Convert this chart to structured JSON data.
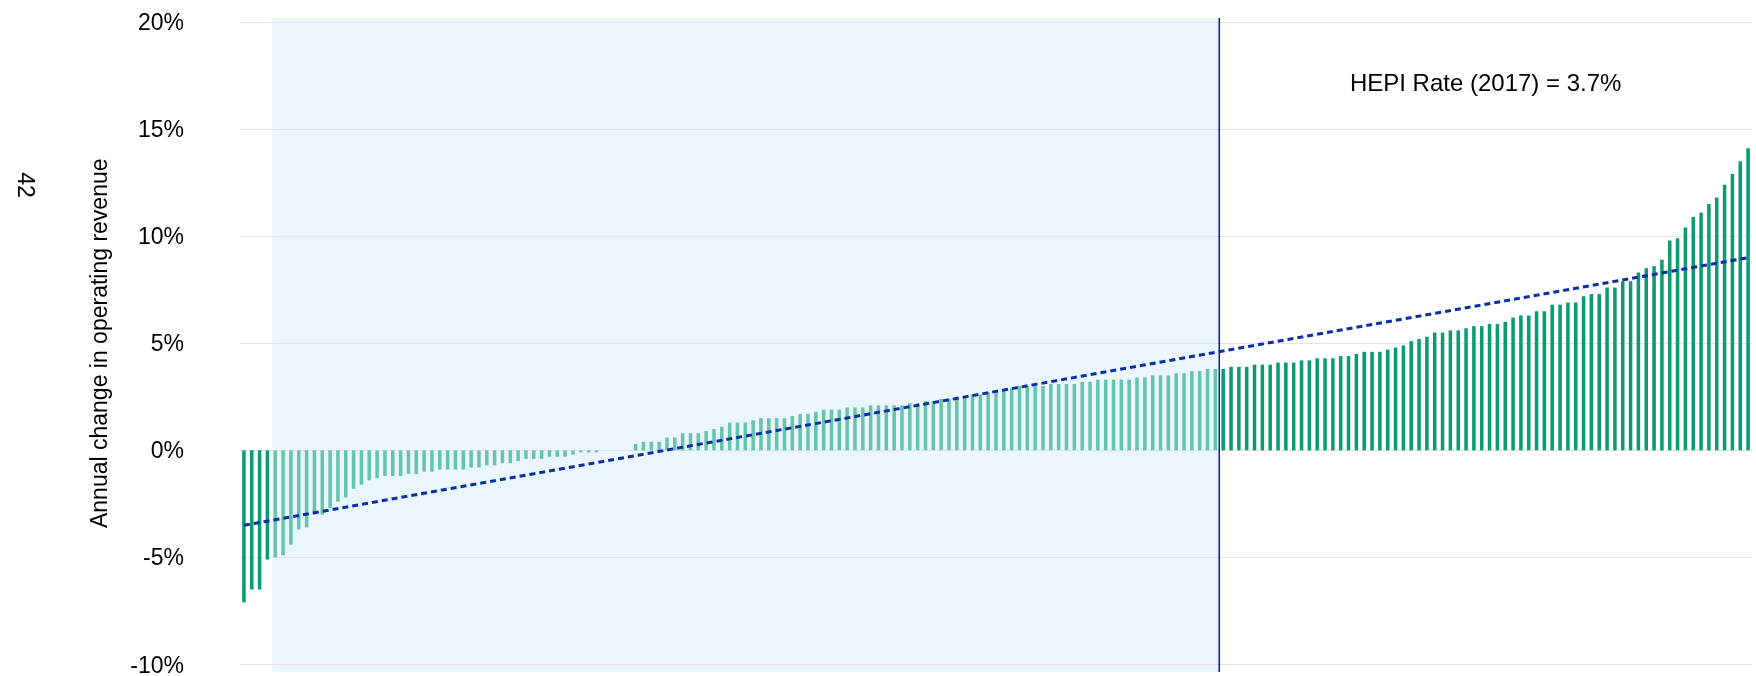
{
  "chart_data": {
    "type": "bar",
    "ylabel": "Annual change in operating revenue",
    "categories": [
      null,
      null,
      null,
      null,
      null,
      null,
      null,
      null,
      null,
      null,
      null,
      null,
      null,
      null,
      null,
      null,
      null,
      null,
      null,
      null,
      null,
      null,
      null,
      null,
      null,
      null,
      null,
      null,
      null,
      null,
      null,
      null,
      null,
      null,
      null,
      null,
      null,
      null,
      null,
      null,
      null,
      null,
      null,
      null,
      null,
      null,
      null,
      null,
      null,
      null,
      null,
      null,
      null,
      null,
      null,
      null,
      null,
      null,
      null,
      null,
      null,
      null,
      null,
      null,
      null,
      null,
      null,
      null,
      null,
      null,
      null,
      null,
      null,
      null,
      null,
      null,
      null,
      null,
      null,
      null,
      null,
      null,
      null,
      null,
      null,
      null,
      null,
      null,
      null,
      null,
      null,
      null,
      null,
      null,
      null,
      null,
      null,
      null,
      null,
      null,
      null,
      null,
      null,
      null,
      null,
      null,
      null,
      null,
      null,
      null,
      null,
      null,
      null,
      null,
      null,
      null,
      null,
      null,
      null,
      null,
      null,
      null,
      null,
      null,
      null,
      null,
      null,
      null,
      null,
      null,
      null,
      null,
      null,
      null,
      null,
      null,
      null,
      null,
      null,
      null,
      null,
      null,
      null,
      null,
      null,
      null,
      null,
      null,
      null,
      null,
      null,
      null,
      null,
      null,
      null,
      null,
      null,
      null,
      null,
      null,
      null,
      null,
      null,
      null,
      null,
      null,
      null,
      null,
      null,
      null,
      null,
      null,
      null,
      null,
      null,
      null,
      null,
      null,
      null,
      null,
      null,
      null,
      null,
      null,
      null,
      null,
      null,
      null,
      null,
      null,
      null,
      null,
      null
    ],
    "series": [
      {
        "colors": [
          "#0a9b72",
          "#0a9b72",
          "#0a9b72",
          "#0a9b72",
          "#66c4a8",
          "#66c4a8",
          "#66c4a8",
          "#66c4a8",
          "#66c4a8",
          "#66c4a8",
          "#66c4a8",
          "#66c4a8",
          "#66c4a8",
          "#66c4a8",
          "#66c4a8",
          "#66c4a8",
          "#66c4a8",
          "#66c4a8",
          "#66c4a8",
          "#66c4a8",
          "#66c4a8",
          "#66c4a8",
          "#66c4a8",
          "#66c4a8",
          "#66c4a8",
          "#66c4a8",
          "#66c4a8",
          "#66c4a8",
          "#66c4a8",
          "#66c4a8",
          "#66c4a8",
          "#66c4a8",
          "#66c4a8",
          "#66c4a8",
          "#66c4a8",
          "#66c4a8",
          "#66c4a8",
          "#66c4a8",
          "#66c4a8",
          "#66c4a8",
          "#66c4a8",
          "#66c4a8",
          "#66c4a8",
          "#66c4a8",
          "#66c4a8",
          "#66c4a8",
          "#66c4a8",
          "#66c4a8",
          "#66c4a8",
          "#66c4a8",
          "#66c4a8",
          "#66c4a8",
          "#66c4a8",
          "#66c4a8",
          "#66c4a8",
          "#66c4a8",
          "#66c4a8",
          "#66c4a8",
          "#66c4a8",
          "#66c4a8",
          "#66c4a8",
          "#66c4a8",
          "#66c4a8",
          "#66c4a8",
          "#66c4a8",
          "#66c4a8",
          "#66c4a8",
          "#66c4a8",
          "#66c4a8",
          "#66c4a8",
          "#66c4a8",
          "#66c4a8",
          "#66c4a8",
          "#66c4a8",
          "#66c4a8",
          "#66c4a8",
          "#66c4a8",
          "#66c4a8",
          "#66c4a8",
          "#66c4a8",
          "#66c4a8",
          "#66c4a8",
          "#66c4a8",
          "#66c4a8",
          "#66c4a8",
          "#66c4a8",
          "#66c4a8",
          "#66c4a8",
          "#66c4a8",
          "#66c4a8",
          "#66c4a8",
          "#66c4a8",
          "#66c4a8",
          "#66c4a8",
          "#66c4a8",
          "#66c4a8",
          "#66c4a8",
          "#66c4a8",
          "#66c4a8",
          "#66c4a8",
          "#66c4a8",
          "#66c4a8",
          "#66c4a8",
          "#66c4a8",
          "#66c4a8",
          "#66c4a8",
          "#66c4a8",
          "#66c4a8",
          "#66c4a8",
          "#66c4a8",
          "#66c4a8",
          "#66c4a8",
          "#66c4a8",
          "#66c4a8",
          "#66c4a8",
          "#66c4a8",
          "#66c4a8",
          "#66c4a8",
          "#66c4a8",
          "#66c4a8",
          "#66c4a8",
          "#66c4a8",
          "#66c4a8",
          "#66c4a8",
          "#66c4a8",
          "#0a9b72",
          "#0a9b72",
          "#0a9b72",
          "#0a9b72",
          "#0a9b72",
          "#0a9b72",
          "#0a9b72",
          "#0a9b72",
          "#0a9b72",
          "#0a9b72",
          "#0a9b72",
          "#0a9b72",
          "#0a9b72",
          "#0a9b72",
          "#0a9b72",
          "#0a9b72",
          "#0a9b72",
          "#0a9b72",
          "#0a9b72",
          "#0a9b72",
          "#0a9b72",
          "#0a9b72",
          "#0a9b72",
          "#0a9b72",
          "#0a9b72",
          "#0a9b72",
          "#0a9b72",
          "#0a9b72",
          "#0a9b72",
          "#0a9b72",
          "#0a9b72",
          "#0a9b72",
          "#0a9b72",
          "#0a9b72",
          "#0a9b72",
          "#0a9b72",
          "#0a9b72",
          "#0a9b72",
          "#0a9b72",
          "#0a9b72",
          "#0a9b72",
          "#0a9b72",
          "#0a9b72",
          "#0a9b72",
          "#0a9b72",
          "#0a9b72",
          "#0a9b72",
          "#0a9b72",
          "#0a9b72",
          "#0a9b72",
          "#0a9b72",
          "#0a9b72",
          "#0a9b72",
          "#0a9b72",
          "#0a9b72",
          "#0a9b72",
          "#0a9b72",
          "#0a9b72",
          "#0a9b72",
          "#0a9b72",
          "#0a9b72",
          "#0a9b72",
          "#0a9b72",
          "#0a9b72",
          "#0a9b72",
          "#0a9b72",
          "#0a9b72",
          "#0a9b72"
        ],
        "values": [
          -7.1,
          -6.5,
          -6.5,
          -5.1,
          -5.0,
          -4.9,
          -4.4,
          -3.7,
          -3.6,
          -3.0,
          -3.0,
          -2.7,
          -2.4,
          -2.2,
          -1.8,
          -1.6,
          -1.4,
          -1.3,
          -1.2,
          -1.2,
          -1.2,
          -1.1,
          -1.1,
          -1.0,
          -1.0,
          -0.9,
          -0.9,
          -0.9,
          -0.9,
          -0.8,
          -0.8,
          -0.7,
          -0.7,
          -0.6,
          -0.6,
          -0.5,
          -0.4,
          -0.4,
          -0.4,
          -0.3,
          -0.3,
          -0.3,
          -0.2,
          -0.1,
          -0.1,
          -0.1,
          0.0,
          0.0,
          0.0,
          0.0,
          0.3,
          0.4,
          0.4,
          0.4,
          0.6,
          0.6,
          0.8,
          0.8,
          0.8,
          0.9,
          1.0,
          1.1,
          1.3,
          1.3,
          1.3,
          1.4,
          1.5,
          1.5,
          1.5,
          1.5,
          1.6,
          1.7,
          1.7,
          1.8,
          1.9,
          1.9,
          1.9,
          2.0,
          2.0,
          2.0,
          2.1,
          2.1,
          2.1,
          2.1,
          2.1,
          2.2,
          2.2,
          2.3,
          2.3,
          2.4,
          2.4,
          2.5,
          2.5,
          2.6,
          2.6,
          2.7,
          2.7,
          2.8,
          2.9,
          3.0,
          3.0,
          3.0,
          3.0,
          3.1,
          3.1,
          3.1,
          3.1,
          3.2,
          3.2,
          3.3,
          3.3,
          3.3,
          3.3,
          3.3,
          3.4,
          3.4,
          3.5,
          3.5,
          3.5,
          3.6,
          3.6,
          3.7,
          3.7,
          3.8,
          3.8,
          3.8,
          3.9,
          3.9,
          3.9,
          4.0,
          4.0,
          4.0,
          4.1,
          4.1,
          4.1,
          4.2,
          4.2,
          4.3,
          4.3,
          4.3,
          4.4,
          4.4,
          4.5,
          4.6,
          4.6,
          4.6,
          4.7,
          4.8,
          4.9,
          5.1,
          5.2,
          5.3,
          5.5,
          5.5,
          5.6,
          5.6,
          5.7,
          5.8,
          5.8,
          5.9,
          5.9,
          6.0,
          6.2,
          6.3,
          6.3,
          6.5,
          6.5,
          6.8,
          6.8,
          6.9,
          6.9,
          7.2,
          7.3,
          7.3,
          7.6,
          7.6,
          7.9,
          7.9,
          8.3,
          8.5,
          8.6,
          8.9,
          9.8,
          9.9,
          10.4,
          10.9,
          11.1,
          11.5,
          11.8,
          12.4,
          12.9,
          13.5,
          14.1
        ]
      },
      {
        "type": "line",
        "color": "#0a2fa5",
        "line_style": "dashed",
        "values": [
          -3.5,
          null,
          null,
          null,
          null,
          null,
          null,
          null,
          null,
          null,
          null,
          null,
          null,
          null,
          null,
          null,
          null,
          null,
          null,
          null,
          null,
          null,
          null,
          null,
          null,
          null,
          null,
          null,
          null,
          null,
          null,
          null,
          null,
          null,
          null,
          null,
          null,
          null,
          null,
          null,
          null,
          null,
          null,
          null,
          null,
          null,
          null,
          null,
          null,
          null,
          null,
          null,
          null,
          null,
          null,
          null,
          null,
          null,
          null,
          null,
          null,
          null,
          null,
          null,
          null,
          null,
          null,
          null,
          null,
          null,
          null,
          null,
          null,
          null,
          null,
          null,
          null,
          null,
          null,
          null,
          null,
          null,
          null,
          null,
          null,
          null,
          null,
          null,
          null,
          null,
          null,
          null,
          null,
          null,
          null,
          null,
          null,
          null,
          null,
          null,
          null,
          null,
          null,
          null,
          null,
          null,
          null,
          null,
          null,
          null,
          null,
          null,
          null,
          null,
          null,
          null,
          null,
          null,
          null,
          null,
          null,
          null,
          null,
          null,
          null,
          null,
          null,
          null,
          null,
          null,
          null,
          null,
          null,
          null,
          null,
          null,
          null,
          null,
          null,
          null,
          null,
          null,
          null,
          null,
          null,
          null,
          null,
          null,
          null,
          null,
          null,
          null,
          null,
          null,
          null,
          null,
          null,
          null,
          null,
          null,
          null,
          null,
          null,
          null,
          null,
          null,
          null,
          null,
          null,
          null,
          null,
          null,
          null,
          null,
          null,
          null,
          null,
          null,
          null,
          null,
          null,
          null,
          null,
          null,
          null,
          null,
          null,
          null,
          null,
          null,
          null,
          null,
          9.0
        ]
      }
    ],
    "ylim": [
      -10,
      20
    ],
    "yticks": [
      {
        "value": -10,
        "label": "-10%"
      },
      {
        "value": -5,
        "label": "-5%"
      },
      {
        "value": 0,
        "label": "0%"
      },
      {
        "value": 5,
        "label": "5%"
      },
      {
        "value": 10,
        "label": "10%"
      },
      {
        "value": 15,
        "label": "15%"
      },
      {
        "value": 20,
        "label": "20%"
      }
    ],
    "grid": "y",
    "tick_labels": "y",
    "annotations": [
      "HEPI Rate (2017) = 3.7%",
      "42"
    ]
  }
}
